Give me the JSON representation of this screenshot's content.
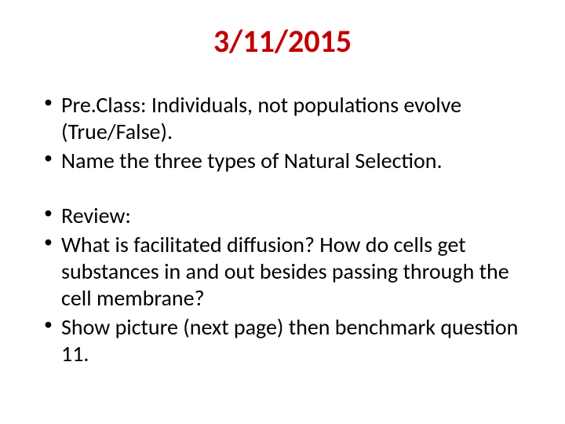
{
  "title": "3/11/2015",
  "title_color": "#c00000",
  "text_color": "#000000",
  "background_color": "#ffffff",
  "title_fontsize": 40,
  "body_fontsize": 28,
  "bullets": [
    {
      "text": "Pre.Class:  Individuals, not populations evolve (True/False).",
      "gap": false
    },
    {
      "text": "Name the three types of Natural Selection.",
      "gap": false
    },
    {
      "text": "Review:",
      "gap": true
    },
    {
      "text": "What is facilitated diffusion?  How do cells get substances in and out besides passing through the cell membrane?",
      "gap": false
    },
    {
      "text": "Show picture  (next page) then benchmark question 11.",
      "gap": false
    }
  ]
}
